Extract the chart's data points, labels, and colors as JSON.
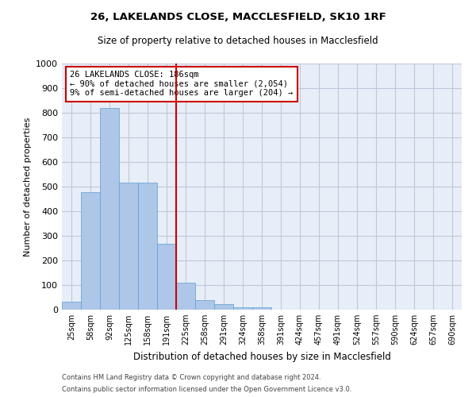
{
  "title1": "26, LAKELANDS CLOSE, MACCLESFIELD, SK10 1RF",
  "title2": "Size of property relative to detached houses in Macclesfield",
  "xlabel": "Distribution of detached houses by size in Macclesfield",
  "ylabel": "Number of detached properties",
  "bar_labels": [
    "25sqm",
    "58sqm",
    "92sqm",
    "125sqm",
    "158sqm",
    "191sqm",
    "225sqm",
    "258sqm",
    "291sqm",
    "324sqm",
    "358sqm",
    "391sqm",
    "424sqm",
    "457sqm",
    "491sqm",
    "524sqm",
    "557sqm",
    "590sqm",
    "624sqm",
    "657sqm",
    "690sqm"
  ],
  "bar_values": [
    33,
    479,
    820,
    516,
    516,
    268,
    110,
    40,
    22,
    10,
    10,
    0,
    0,
    0,
    0,
    0,
    0,
    0,
    0,
    0,
    0
  ],
  "bar_color": "#aec6e8",
  "bar_edgecolor": "#5a9fd4",
  "vline_x": 5.5,
  "vline_color": "#cc0000",
  "annotation_line1": "26 LAKELANDS CLOSE: 186sqm",
  "annotation_line2": "← 90% of detached houses are smaller (2,054)",
  "annotation_line3": "9% of semi-detached houses are larger (204) →",
  "annotation_box_color": "#cc0000",
  "ylim": [
    0,
    1000
  ],
  "yticks": [
    0,
    100,
    200,
    300,
    400,
    500,
    600,
    700,
    800,
    900,
    1000
  ],
  "grid_color": "#c0c8d8",
  "bg_color": "#e8eef8",
  "footer1": "Contains HM Land Registry data © Crown copyright and database right 2024.",
  "footer2": "Contains public sector information licensed under the Open Government Licence v3.0."
}
